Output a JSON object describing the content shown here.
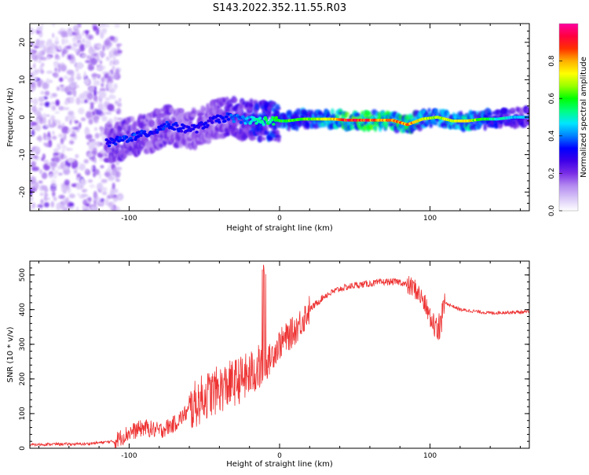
{
  "title": "S143.2022.352.11.55.R03",
  "chart_data": [
    {
      "type": "heatmap",
      "xlabel": "Height of straight line (km)",
      "ylabel": "Frequency (Hz)",
      "xlim": [
        -166,
        166
      ],
      "ylim": [
        -25,
        25
      ],
      "xticks": [
        -100,
        0,
        100
      ],
      "yticks": [
        -20,
        -10,
        0,
        10,
        20
      ],
      "colorbar": {
        "label": "Normalized spectral amplitude",
        "range": [
          0.0,
          1.0
        ],
        "ticks": [
          0.0,
          0.2,
          0.4,
          0.6,
          0.8
        ],
        "tick_labels": [
          "0.0",
          "0.2",
          "0.4",
          "0.6",
          "0.8"
        ],
        "colormap": [
          "#ffffff",
          "#d9c8f7",
          "#b48af0",
          "#7a2fe6",
          "#3e00e8",
          "#0000ff",
          "#0080ff",
          "#00e5ff",
          "#00ff80",
          "#00ff00",
          "#9aff00",
          "#ffff00",
          "#ffb000",
          "#ff3000",
          "#ff0040",
          "#ff00a0"
        ]
      },
      "ridge": {
        "x": [
          -115,
          -105,
          -95,
          -85,
          -75,
          -65,
          -55,
          -45,
          -35,
          -25,
          -15,
          -5,
          5,
          15,
          25,
          35,
          45,
          55,
          65,
          75,
          85,
          95,
          105,
          115,
          125,
          135,
          145,
          155,
          166
        ],
        "frequency": [
          -7,
          -6,
          -5,
          -4,
          -2,
          -3,
          -3,
          -1,
          0,
          -0.5,
          -1,
          -1,
          -1,
          -0.5,
          -0.5,
          -0.5,
          -0.8,
          -0.8,
          -0.8,
          -0.8,
          -2,
          -0.5,
          0,
          -1,
          -1,
          -0.5,
          -0.5,
          0,
          0
        ],
        "amplitude": [
          0.3,
          0.35,
          0.35,
          0.3,
          0.35,
          0.3,
          0.3,
          0.3,
          0.35,
          0.4,
          0.5,
          0.55,
          0.6,
          0.6,
          0.65,
          0.75,
          0.9,
          0.9,
          0.85,
          0.8,
          0.85,
          0.7,
          0.65,
          0.7,
          0.75,
          0.6,
          0.5,
          0.45,
          0.4
        ]
      }
    },
    {
      "type": "line",
      "xlabel": "Height of straight line (km)",
      "ylabel": "SNR (10 * v/v)",
      "xlim": [
        -166,
        166
      ],
      "ylim": [
        0,
        540
      ],
      "xticks": [
        -100,
        0,
        100
      ],
      "yticks": [
        0,
        100,
        200,
        300,
        400,
        500
      ],
      "series": [
        {
          "name": "SNR",
          "color": "#ee3333",
          "x": [
            -166,
            -150,
            -130,
            -110,
            -100,
            -90,
            -80,
            -70,
            -60,
            -50,
            -40,
            -30,
            -20,
            -15,
            -10,
            -5,
            0,
            10,
            20,
            30,
            40,
            50,
            60,
            70,
            80,
            90,
            95,
            100,
            105,
            110,
            120,
            130,
            140,
            150,
            166
          ],
          "y": [
            10,
            12,
            12,
            20,
            45,
            60,
            50,
            70,
            110,
            150,
            170,
            190,
            210,
            230,
            230,
            270,
            300,
            340,
            400,
            440,
            460,
            470,
            475,
            480,
            480,
            460,
            430,
            380,
            350,
            420,
            400,
            395,
            390,
            392,
            393
          ]
        }
      ]
    }
  ]
}
